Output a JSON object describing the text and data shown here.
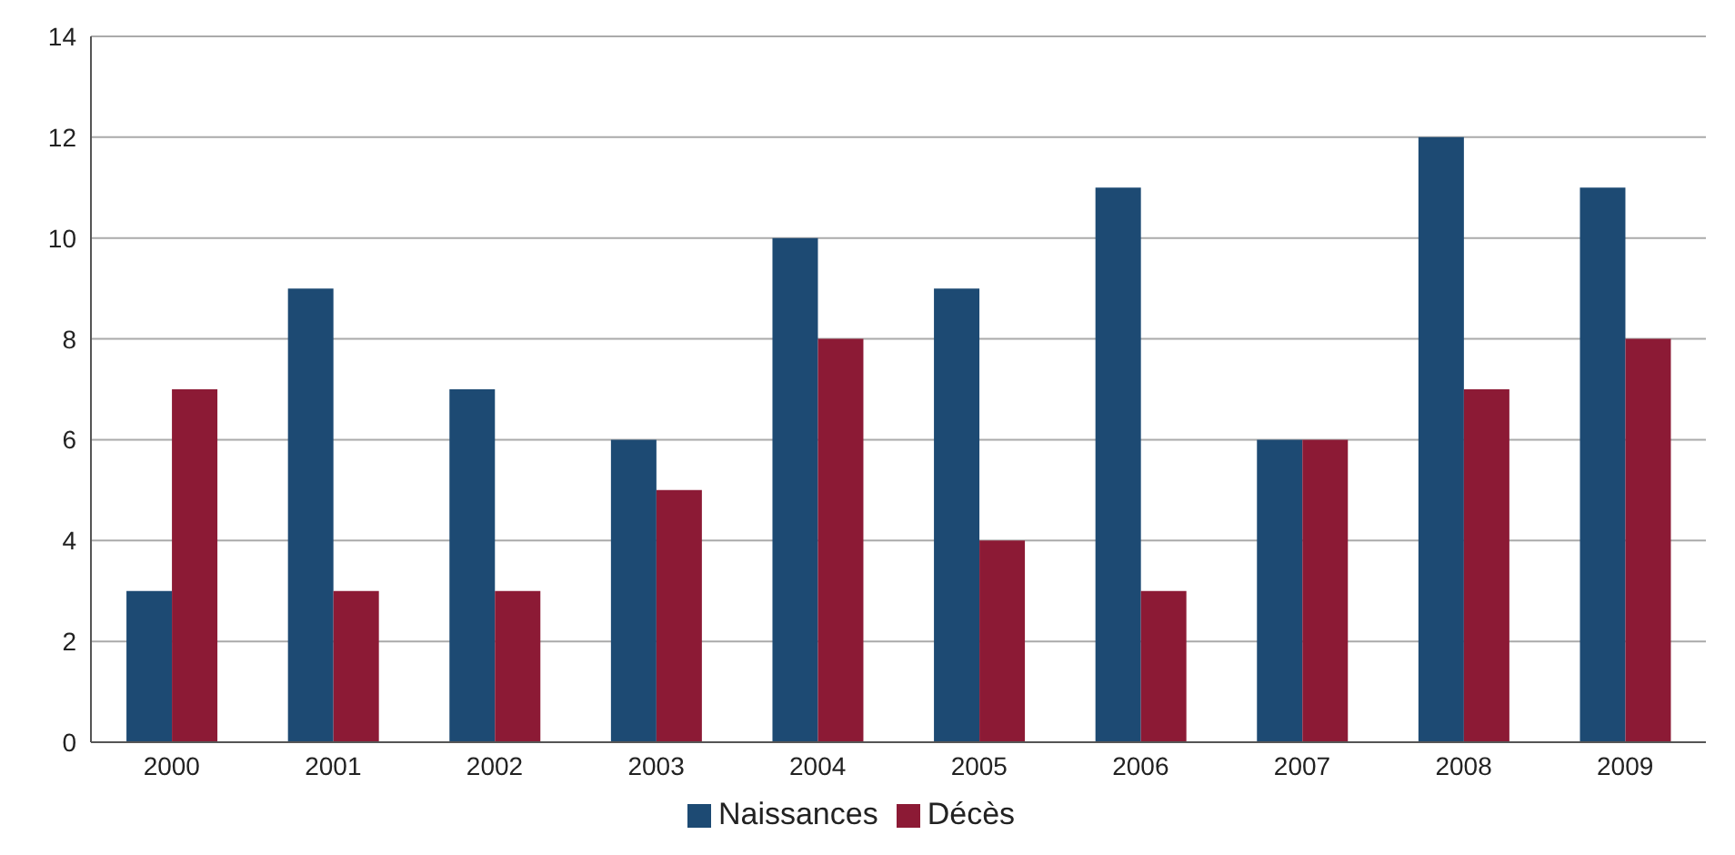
{
  "chart_data": {
    "type": "bar",
    "categories": [
      "2000",
      "2001",
      "2002",
      "2003",
      "2004",
      "2005",
      "2006",
      "2007",
      "2008",
      "2009"
    ],
    "series": [
      {
        "name": "Naissances",
        "color": "#1d4a73",
        "values": [
          3,
          9,
          7,
          6,
          10,
          9,
          11,
          6,
          12,
          11
        ]
      },
      {
        "name": "Décès",
        "color": "#8c1a35",
        "values": [
          7,
          3,
          3,
          5,
          8,
          4,
          3,
          6,
          7,
          8
        ]
      }
    ],
    "ylim": [
      0,
      14
    ],
    "yticks": [
      0,
      2,
      4,
      6,
      8,
      10,
      12,
      14
    ],
    "grid": "y",
    "legend": "bottom"
  }
}
